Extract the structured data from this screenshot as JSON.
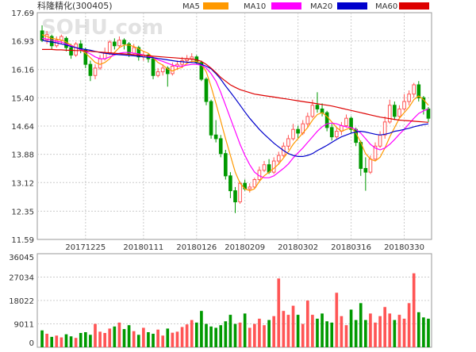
{
  "header": {
    "title": "科隆精化(300405)",
    "legend": [
      {
        "label": "MA5",
        "color": "#ff9900"
      },
      {
        "label": "MA10",
        "color": "#ff00ff"
      },
      {
        "label": "MA20",
        "color": "#0000cc"
      },
      {
        "label": "MA60",
        "color": "#dd0000"
      }
    ]
  },
  "watermark": "SOHU.com",
  "colors": {
    "up": "#ff5555",
    "down": "#009900",
    "grid": "#cccccc",
    "text": "#333333"
  },
  "chart_data": [
    {
      "type": "candlestick",
      "title": "科隆精化(300405)",
      "y_ticks": [
        "17.69",
        "16.93",
        "16.16",
        "15.40",
        "14.64",
        "13.88",
        "13.12",
        "12.35",
        "11.59"
      ],
      "ylim": [
        11.59,
        17.69
      ],
      "date_labels": [
        {
          "label": "20171225",
          "index": 9
        },
        {
          "label": "20180111",
          "index": 21
        },
        {
          "label": "20180126",
          "index": 32
        },
        {
          "label": "20180209",
          "index": 42
        },
        {
          "label": "20180302",
          "index": 53
        },
        {
          "label": "20180316",
          "index": 64
        },
        {
          "label": "20180330",
          "index": 75
        }
      ],
      "candles": [
        [
          17.2,
          16.95,
          17.35,
          16.9
        ],
        [
          16.95,
          17.1,
          17.2,
          16.85
        ],
        [
          17.05,
          16.8,
          17.1,
          16.7
        ],
        [
          16.8,
          16.95,
          17.05,
          16.75
        ],
        [
          16.95,
          17.05,
          17.1,
          16.85
        ],
        [
          17.0,
          16.75,
          17.05,
          16.65
        ],
        [
          16.75,
          16.55,
          16.85,
          16.45
        ],
        [
          16.55,
          16.85,
          16.9,
          16.5
        ],
        [
          16.85,
          16.7,
          16.95,
          16.6
        ],
        [
          16.7,
          16.3,
          16.75,
          16.2
        ],
        [
          16.3,
          16.0,
          16.4,
          15.85
        ],
        [
          16.0,
          16.2,
          16.3,
          15.9
        ],
        [
          16.2,
          16.45,
          16.55,
          16.15
        ],
        [
          16.45,
          16.6,
          16.75,
          16.4
        ],
        [
          16.6,
          16.9,
          16.95,
          16.55
        ],
        [
          16.9,
          16.8,
          17.0,
          16.7
        ],
        [
          16.8,
          16.95,
          17.05,
          16.75
        ],
        [
          16.95,
          16.85,
          17.0,
          16.7
        ],
        [
          16.85,
          16.6,
          16.9,
          16.5
        ],
        [
          16.6,
          16.75,
          16.85,
          16.55
        ],
        [
          16.75,
          16.5,
          16.8,
          16.4
        ],
        [
          16.5,
          16.55,
          16.65,
          16.4
        ],
        [
          16.55,
          16.45,
          16.6,
          16.35
        ],
        [
          16.45,
          16.0,
          16.5,
          15.9
        ],
        [
          16.0,
          16.1,
          16.2,
          15.95
        ],
        [
          16.1,
          16.2,
          16.3,
          16.0
        ],
        [
          16.2,
          16.05,
          16.25,
          15.7
        ],
        [
          16.05,
          16.25,
          16.35,
          16.0
        ],
        [
          16.25,
          16.3,
          16.4,
          16.15
        ],
        [
          16.3,
          16.4,
          16.5,
          16.2
        ],
        [
          16.4,
          16.45,
          16.55,
          16.3
        ],
        [
          16.45,
          16.5,
          16.6,
          16.35
        ],
        [
          16.5,
          16.35,
          16.55,
          16.3
        ],
        [
          16.35,
          15.9,
          16.4,
          15.85
        ],
        [
          15.9,
          15.3,
          15.95,
          15.2
        ],
        [
          15.3,
          14.4,
          15.35,
          14.3
        ],
        [
          14.4,
          14.3,
          14.8,
          14.2
        ],
        [
          14.3,
          13.9,
          14.4,
          13.8
        ],
        [
          13.9,
          13.3,
          14.0,
          13.2
        ],
        [
          13.3,
          12.9,
          13.4,
          12.7
        ],
        [
          12.9,
          12.6,
          13.0,
          12.3
        ],
        [
          12.6,
          13.1,
          13.15,
          12.55
        ],
        [
          13.1,
          12.95,
          13.2,
          12.9
        ],
        [
          12.95,
          13.0,
          13.1,
          12.85
        ],
        [
          13.0,
          13.2,
          13.25,
          12.95
        ],
        [
          13.2,
          13.45,
          13.55,
          13.15
        ],
        [
          13.45,
          13.6,
          13.7,
          13.4
        ],
        [
          13.6,
          13.4,
          13.75,
          13.35
        ],
        [
          13.4,
          13.7,
          13.8,
          13.35
        ],
        [
          13.7,
          13.85,
          13.95,
          13.6
        ],
        [
          13.85,
          14.1,
          14.2,
          13.8
        ],
        [
          14.1,
          14.3,
          14.4,
          14.0
        ],
        [
          14.3,
          14.55,
          14.7,
          14.25
        ],
        [
          14.55,
          14.45,
          14.65,
          14.3
        ],
        [
          14.45,
          14.7,
          14.8,
          14.4
        ],
        [
          14.7,
          14.9,
          15.0,
          14.6
        ],
        [
          14.9,
          15.2,
          15.35,
          14.85
        ],
        [
          15.2,
          15.1,
          15.55,
          15.0
        ],
        [
          15.1,
          15.0,
          15.25,
          14.9
        ],
        [
          15.0,
          14.6,
          15.05,
          14.5
        ],
        [
          14.6,
          14.35,
          14.7,
          14.25
        ],
        [
          14.35,
          14.5,
          14.6,
          14.3
        ],
        [
          14.5,
          14.65,
          14.75,
          14.4
        ],
        [
          14.65,
          14.85,
          14.95,
          14.6
        ],
        [
          14.85,
          14.55,
          14.9,
          14.45
        ],
        [
          14.55,
          14.2,
          14.6,
          14.1
        ],
        [
          14.2,
          13.5,
          14.25,
          13.3
        ],
        [
          13.5,
          13.4,
          13.8,
          12.9
        ],
        [
          13.4,
          13.75,
          13.85,
          13.35
        ],
        [
          13.75,
          14.1,
          14.2,
          13.7
        ],
        [
          14.1,
          14.4,
          14.5,
          14.05
        ],
        [
          14.4,
          14.75,
          14.9,
          14.3
        ],
        [
          14.75,
          15.2,
          15.35,
          14.7
        ],
        [
          15.2,
          14.9,
          15.3,
          14.8
        ],
        [
          14.9,
          15.1,
          15.2,
          14.85
        ],
        [
          15.1,
          15.3,
          15.5,
          15.05
        ],
        [
          15.3,
          15.5,
          15.6,
          15.2
        ],
        [
          15.5,
          15.75,
          15.8,
          15.4
        ],
        [
          15.75,
          15.4,
          15.85,
          15.3
        ],
        [
          15.4,
          15.1,
          15.45,
          14.95
        ],
        [
          15.1,
          14.85,
          15.15,
          14.75
        ]
      ],
      "ma5": [
        17.1,
        17.05,
        17.0,
        16.98,
        16.95,
        16.9,
        16.82,
        16.75,
        16.7,
        16.6,
        16.48,
        16.35,
        16.3,
        16.35,
        16.45,
        16.62,
        16.75,
        16.82,
        16.82,
        16.78,
        16.72,
        16.65,
        16.6,
        16.48,
        16.35,
        16.28,
        16.18,
        16.12,
        16.18,
        16.22,
        16.33,
        16.38,
        16.38,
        16.3,
        16.1,
        15.7,
        15.25,
        14.78,
        14.3,
        13.85,
        13.4,
        13.1,
        12.95,
        12.9,
        12.95,
        13.15,
        13.3,
        13.4,
        13.5,
        13.62,
        13.78,
        13.95,
        14.15,
        14.3,
        14.45,
        14.6,
        14.8,
        14.95,
        15.0,
        14.9,
        14.75,
        14.6,
        14.5,
        14.55,
        14.6,
        14.45,
        14.2,
        13.9,
        13.75,
        13.7,
        13.8,
        14.05,
        14.35,
        14.6,
        14.85,
        15.0,
        15.15,
        15.35,
        15.45,
        15.35,
        15.2
      ],
      "ma10": [
        17.0,
        16.98,
        16.95,
        16.92,
        16.9,
        16.85,
        16.8,
        16.75,
        16.7,
        16.65,
        16.58,
        16.5,
        16.45,
        16.45,
        16.5,
        16.55,
        16.6,
        16.62,
        16.62,
        16.6,
        16.58,
        16.55,
        16.52,
        16.48,
        16.42,
        16.38,
        16.33,
        16.28,
        16.25,
        16.25,
        16.28,
        16.3,
        16.3,
        16.28,
        16.2,
        16.05,
        15.85,
        15.55,
        15.2,
        14.85,
        14.5,
        14.15,
        13.85,
        13.6,
        13.4,
        13.3,
        13.25,
        13.25,
        13.3,
        13.4,
        13.5,
        13.62,
        13.78,
        13.92,
        14.05,
        14.2,
        14.35,
        14.5,
        14.62,
        14.7,
        14.72,
        14.7,
        14.65,
        14.62,
        14.6,
        14.55,
        14.45,
        14.3,
        14.15,
        14.05,
        14.0,
        14.05,
        14.15,
        14.28,
        14.42,
        14.55,
        14.7,
        14.85,
        14.98,
        15.05,
        15.1
      ],
      "ma20": [
        16.95,
        16.92,
        16.9,
        16.88,
        16.85,
        16.82,
        16.78,
        16.75,
        16.72,
        16.7,
        16.68,
        16.65,
        16.62,
        16.6,
        16.58,
        16.57,
        16.56,
        16.55,
        16.54,
        16.53,
        16.52,
        16.5,
        16.49,
        16.48,
        16.46,
        16.44,
        16.42,
        16.4,
        16.38,
        16.37,
        16.36,
        16.35,
        16.34,
        16.3,
        16.25,
        16.18,
        16.05,
        15.9,
        15.72,
        15.55,
        15.38,
        15.2,
        15.02,
        14.85,
        14.7,
        14.55,
        14.42,
        14.3,
        14.18,
        14.08,
        13.98,
        13.9,
        13.85,
        13.82,
        13.82,
        13.85,
        13.9,
        13.98,
        14.05,
        14.12,
        14.2,
        14.28,
        14.35,
        14.4,
        14.45,
        14.48,
        14.5,
        14.48,
        14.45,
        14.42,
        14.4,
        14.42,
        14.45,
        14.5,
        14.52,
        14.55,
        14.58,
        14.62,
        14.65,
        14.68,
        14.7
      ],
      "ma60": [
        16.7,
        16.7,
        16.7,
        16.69,
        16.69,
        16.68,
        16.68,
        16.67,
        16.67,
        16.66,
        16.65,
        16.64,
        16.63,
        16.62,
        16.61,
        16.6,
        16.59,
        16.58,
        16.57,
        16.56,
        16.55,
        16.54,
        16.53,
        16.52,
        16.51,
        16.5,
        16.49,
        16.48,
        16.47,
        16.46,
        16.45,
        16.44,
        16.42,
        16.38,
        16.3,
        16.2,
        16.08,
        15.95,
        15.85,
        15.75,
        15.68,
        15.62,
        15.58,
        15.54,
        15.5,
        15.48,
        15.46,
        15.44,
        15.42,
        15.4,
        15.38,
        15.36,
        15.34,
        15.32,
        15.3,
        15.28,
        15.26,
        15.24,
        15.22,
        15.2,
        15.18,
        15.15,
        15.12,
        15.09,
        15.06,
        15.03,
        15.0,
        14.97,
        14.94,
        14.91,
        14.88,
        14.86,
        14.84,
        14.82,
        14.8,
        14.79,
        14.78,
        14.77,
        14.76,
        14.75,
        14.74
      ]
    },
    {
      "type": "bar",
      "y_ticks": [
        "36045",
        "27034",
        "18022",
        "9011",
        "0"
      ],
      "ylim": [
        0,
        36045
      ],
      "volumes": [
        6500,
        5200,
        4000,
        4500,
        3800,
        5000,
        4200,
        3600,
        5500,
        5800,
        4800,
        9000,
        6000,
        5500,
        7200,
        8000,
        9500,
        7000,
        8500,
        6200,
        4800,
        7500,
        5800,
        5200,
        6800,
        4500,
        7200,
        5600,
        6000,
        7800,
        8800,
        10500,
        9500,
        14000,
        9000,
        8000,
        7500,
        8500,
        10000,
        12500,
        9000,
        9500,
        13000,
        7500,
        9000,
        11000,
        8500,
        10500,
        12000,
        26500,
        14000,
        12500,
        16000,
        12500,
        9000,
        18000,
        12500,
        11000,
        13000,
        10000,
        9500,
        21000,
        12000,
        8500,
        14500,
        10500,
        17000,
        10500,
        13000,
        9500,
        12000,
        15500,
        13000,
        10500,
        12500,
        11000,
        17000,
        28500,
        13500,
        11500,
        11000
      ]
    }
  ]
}
